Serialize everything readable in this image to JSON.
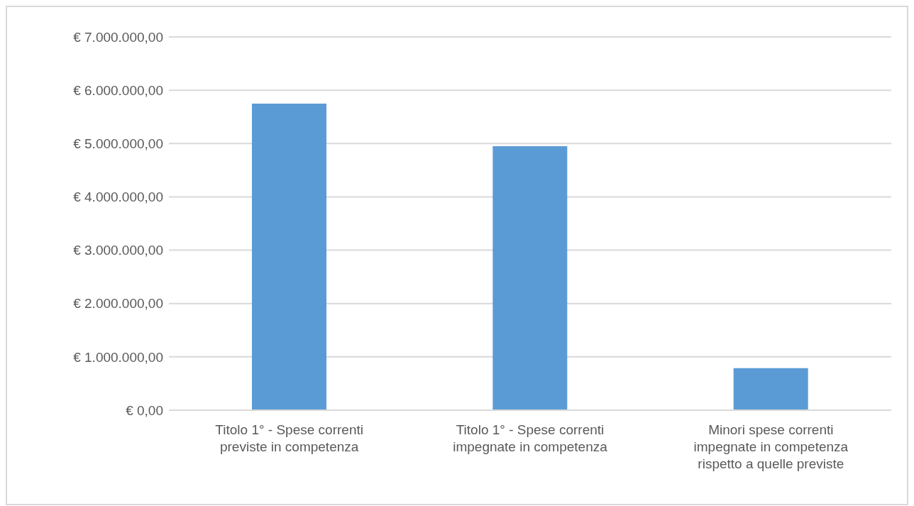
{
  "chart_data": {
    "type": "bar",
    "categories": [
      "Titolo 1° - Spese correnti previste in competenza",
      "Titolo 1° - Spese correnti impegnate in competenza",
      "Minori spese correnti impegnate in competenza rispetto a quelle previste"
    ],
    "values": [
      5750000,
      4950000,
      790000
    ],
    "color": "#5b9bd5",
    "ylim": [
      0,
      7000000
    ],
    "yticks": [
      {
        "value": 0,
        "label": "€ 0,00"
      },
      {
        "value": 1000000,
        "label": "€ 1.000.000,00"
      },
      {
        "value": 2000000,
        "label": "€ 2.000.000,00"
      },
      {
        "value": 3000000,
        "label": "€ 3.000.000,00"
      },
      {
        "value": 4000000,
        "label": "€ 4.000.000,00"
      },
      {
        "value": 5000000,
        "label": "€ 5.000.000,00"
      },
      {
        "value": 6000000,
        "label": "€ 6.000.000,00"
      },
      {
        "value": 7000000,
        "label": "€ 7.000.000,00"
      }
    ],
    "grid": "y"
  }
}
